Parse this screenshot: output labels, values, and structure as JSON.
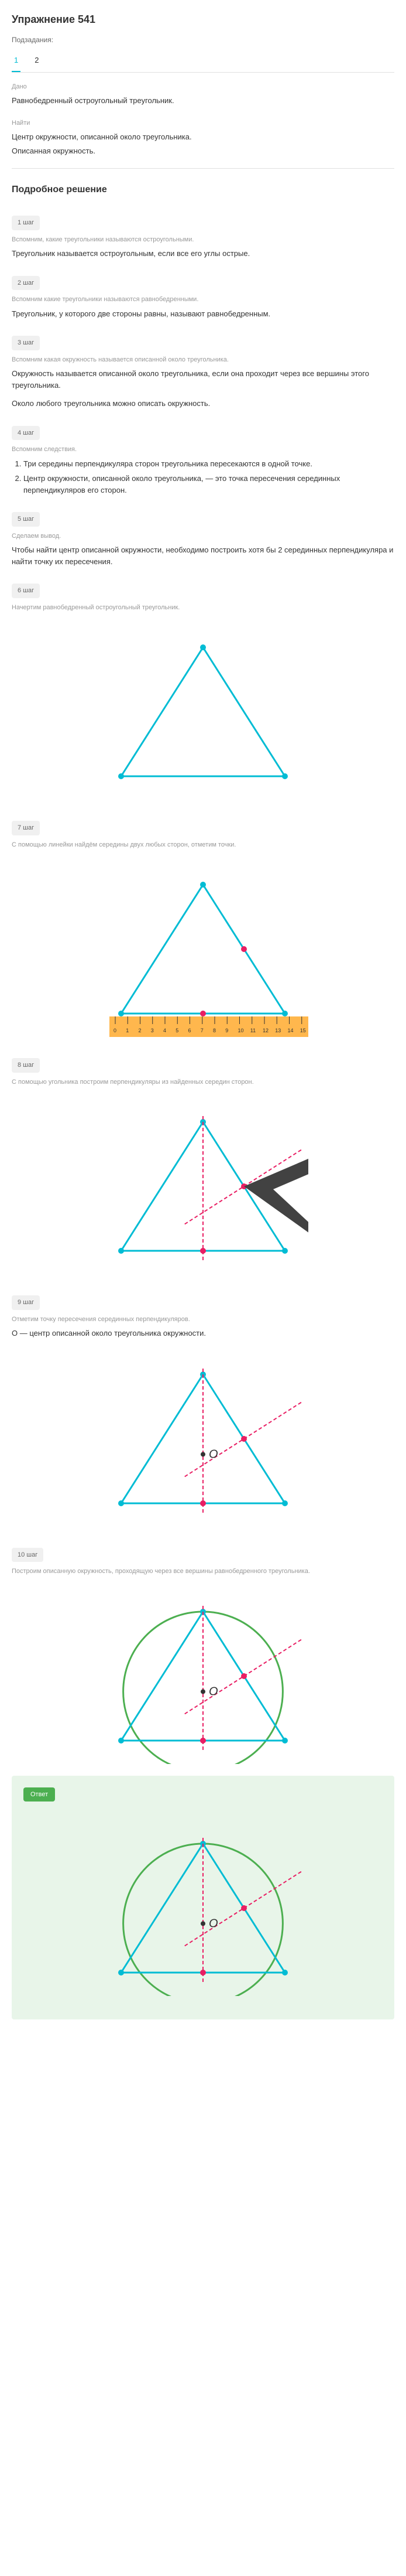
{
  "header": {
    "title": "Упражнение 541",
    "subtask_label": "Подзадания:",
    "tabs": [
      "1",
      "2"
    ]
  },
  "given": {
    "label": "Дано",
    "text": "Равнобедренный остроугольный треугольник."
  },
  "find": {
    "label": "Найти",
    "text": "Центр окружности, описанной около треугольника.",
    "answer_type": "Описанная окружность."
  },
  "solution_title": "Подробное решение",
  "steps": [
    {
      "badge": "1 шаг",
      "hint": "Вспомним, какие треугольники называются остроугольными.",
      "text": "Треугольник называется остроугольным, если все его углы острые."
    },
    {
      "badge": "2 шаг",
      "hint": "Вспомним какие треугольники называются равнобедренными.",
      "text": "Треугольник, у которого две стороны равны, называют равнобедренным."
    },
    {
      "badge": "3 шаг",
      "hint": "Вспомним какая окружность называется описанной около треугольника.",
      "text": "Окружность называется описанной около треугольника, если она проходит через все вершины этого треугольника.",
      "text2": "Около любого треугольника можно описать окружность."
    },
    {
      "badge": "4 шаг",
      "hint": "Вспомним следствия.",
      "list": [
        "Три середины перпендикуляра сторон треугольника пересекаются в одной точке.",
        "Центр окружности, описанной около треугольника, — это точка пересечения серединных перпендикуляров его сторон."
      ]
    },
    {
      "badge": "5 шаг",
      "hint": "Сделаем вывод.",
      "text": "Чтобы найти центр описанной окружности, необходимо построить хотя бы 2 серединных перпендикуляра и найти точку их пересечения."
    },
    {
      "badge": "6 шаг",
      "hint": "Начертим равнобедренный остроугольный треугольник.",
      "figure": "triangle"
    },
    {
      "badge": "7 шаг",
      "hint": "С помощью линейки найдём середины двух любых сторон, отметим точки.",
      "figure": "triangle_ruler"
    },
    {
      "badge": "8 шаг",
      "hint": "С помощью угольника построим перпендикуляры из найденных середин сторон.",
      "figure": "triangle_square"
    },
    {
      "badge": "9 шаг",
      "hint": "Отметим точку пересечения серединных перпендикуляров.",
      "text": "O — центр описанной около треугольника окружности.",
      "figure": "triangle_center"
    },
    {
      "badge": "10 шаг",
      "hint": "Построим описанную окружность, проходящую через все вершины равнобедренного треугольника.",
      "figure": "triangle_circle"
    }
  ],
  "answer": {
    "label": "Ответ",
    "figure": "triangle_circle"
  },
  "colors": {
    "triangle_stroke": "#00bcd4",
    "triangle_fill": "none",
    "vertex_fill": "#00bcd4",
    "midpoint_fill": "#e91e63",
    "perpendicular_stroke": "#e91e63",
    "circle_stroke": "#4caf50",
    "ruler_fill": "#ffb74d",
    "square_fill": "#424242",
    "center_label": "O"
  },
  "geometry": {
    "triangle_width": 280,
    "triangle_height": 220,
    "vertex_radius": 5,
    "midpoint_radius": 5,
    "stroke_width": 3,
    "dash_pattern": "6,4"
  }
}
